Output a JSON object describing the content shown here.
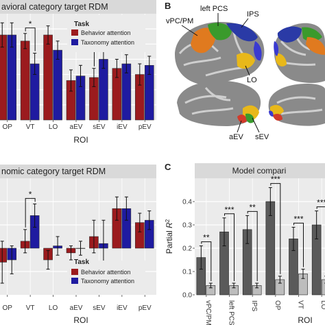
{
  "panels": {
    "top_left": {
      "title": "avioral category target RDM"
    },
    "bottom_left": {
      "title": "nomic category target RDM"
    },
    "brain": {
      "letter": "B",
      "labels": [
        "vPC/PM",
        "left PCS",
        "IPS",
        "LO",
        "aEV",
        "sEV"
      ]
    },
    "model": {
      "letter": "C",
      "title": "Model compari"
    }
  },
  "legend": {
    "title": "Task",
    "items": [
      "Behavior attention",
      "Taxonomy attention"
    ]
  },
  "axis_titles": {
    "roi": "ROI"
  },
  "colors": {
    "behavior": "#9b1b1e",
    "taxonomy": "#1f1ba0",
    "panel_bg": "#ebebeb",
    "strip": "#d9d9d9",
    "dark_bar": "#5a5a5a",
    "light_bar": "#bdbdbd"
  },
  "chart_data": [
    {
      "type": "bar",
      "title": "avioral category target RDM",
      "xlabel": "ROI",
      "categories": [
        "OP",
        "VT",
        "LO",
        "aEV",
        "sEV",
        "iEV",
        "pEV"
      ],
      "series": [
        {
          "name": "Behavior attention",
          "values": [
            0.56,
            0.52,
            0.56,
            0.26,
            0.28,
            0.34,
            0.3
          ]
        },
        {
          "name": "Taxonomy attention",
          "values": [
            0.56,
            0.37,
            0.46,
            0.29,
            0.4,
            0.37,
            0.36
          ]
        }
      ],
      "errors": [
        [
          0.08,
          0.05,
          0.06,
          0.07,
          0.06,
          0.06,
          0.07
        ],
        [
          0.08,
          0.07,
          0.06,
          0.07,
          0.06,
          0.06,
          0.06
        ]
      ],
      "annotations": [
        {
          "text": "*",
          "category": "VT"
        },
        {
          "text": "*",
          "category": "sEV"
        }
      ],
      "ylim": [
        0,
        0.7
      ],
      "grid": true
    },
    {
      "type": "bar",
      "title": "nomic category target RDM",
      "xlabel": "ROI",
      "categories": [
        "OP",
        "VT",
        "LO",
        "aEV",
        "sEV",
        "iEV",
        "pEV"
      ],
      "series": [
        {
          "name": "Behavior attention",
          "values": [
            -0.06,
            0.03,
            -0.05,
            -0.02,
            0.05,
            0.17,
            0.11
          ]
        },
        {
          "name": "Taxonomy attention",
          "values": [
            -0.05,
            0.14,
            0.01,
            0.0,
            0.02,
            0.17,
            0.12
          ]
        }
      ],
      "errors": [
        [
          0.09,
          0.05,
          0.04,
          0.03,
          0.07,
          0.05,
          0.04
        ],
        [
          0.06,
          0.05,
          0.04,
          0.03,
          0.1,
          0.05,
          0.04
        ]
      ],
      "annotations": [
        {
          "text": "*",
          "category": "VT"
        }
      ],
      "ylim": [
        -0.2,
        0.3
      ],
      "grid": true
    },
    {
      "type": "bar",
      "title": "Model compari",
      "xlabel": "ROI",
      "ylabel": "Partial R²",
      "categories": [
        "vPC/PM",
        "left PCS",
        "IPS",
        "OP",
        "VT",
        "LO"
      ],
      "series": [
        {
          "values": [
            0.16,
            0.27,
            0.28,
            0.4,
            0.24,
            0.3
          ]
        },
        {
          "values": [
            0.04,
            0.04,
            0.04,
            0.065,
            0.09,
            0.065
          ]
        }
      ],
      "errors": [
        [
          0.05,
          0.06,
          0.06,
          0.06,
          0.05,
          0.06
        ],
        [
          0.01,
          0.01,
          0.01,
          0.015,
          0.02,
          0.015
        ]
      ],
      "annotations": [
        {
          "text": "**",
          "category": "vPC/PM"
        },
        {
          "text": "***",
          "category": "left PCS"
        },
        {
          "text": "**",
          "category": "IPS"
        },
        {
          "text": "***",
          "category": "OP"
        },
        {
          "text": "***",
          "category": "VT"
        },
        {
          "text": "***",
          "category": "LO"
        }
      ],
      "yticks": [
        0.0,
        0.1,
        0.2,
        0.3,
        0.4
      ],
      "ylim": [
        0,
        0.5
      ],
      "grid": true
    }
  ]
}
